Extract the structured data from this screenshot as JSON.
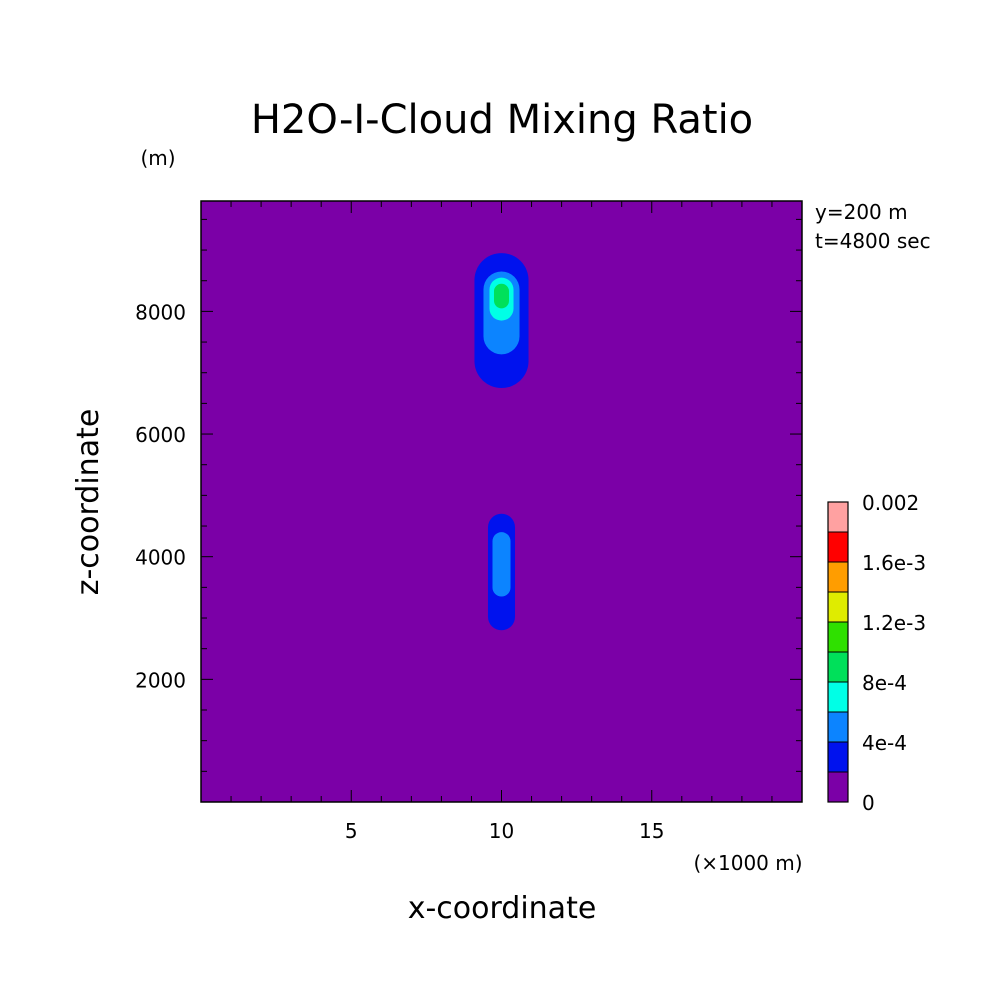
{
  "chart_data": {
    "type": "heatmap",
    "title": "H2O-I-Cloud Mixing Ratio",
    "xlabel": "x-coordinate",
    "ylabel": "z-coordinate",
    "x_unit": "(×1000 m)",
    "y_unit": "(m)",
    "info_lines": [
      "y=200 m",
      "t=4800 sec"
    ],
    "xlim": [
      0,
      20
    ],
    "ylim": [
      0,
      9800
    ],
    "x_ticks": [
      5,
      10,
      15
    ],
    "y_ticks": [
      2000,
      4000,
      6000,
      8000
    ],
    "x_tick_labels": [
      "5",
      "10",
      "15"
    ],
    "y_tick_labels": [
      "2000",
      "4000",
      "6000",
      "8000"
    ],
    "colorbar": {
      "levels": [
        0,
        0.0002,
        0.0004,
        0.0006,
        0.0008,
        0.001,
        0.0012,
        0.0014,
        0.0016,
        0.0018,
        0.002
      ],
      "colors": [
        "#7b00a7",
        "#0012ee",
        "#0c84ff",
        "#00ffe6",
        "#00e05a",
        "#2fe000",
        "#dfec00",
        "#ff9d00",
        "#ff0000",
        "#ffa1a1"
      ],
      "labels": [
        "0",
        "4e-4",
        "8e-4",
        "1.2e-3",
        "1.6e-3",
        "0.002"
      ]
    },
    "background_color": "#7b00a7",
    "features": [
      {
        "name": "upper-cloud",
        "x": 10,
        "z": 8000,
        "bands": [
          {
            "level": 1,
            "x0": 9.1,
            "x1": 10.9,
            "z0": 6750,
            "z1": 8950
          },
          {
            "level": 2,
            "x0": 9.4,
            "x1": 10.6,
            "z0": 7300,
            "z1": 8650
          },
          {
            "level": 3,
            "x0": 9.6,
            "x1": 10.4,
            "z0": 7850,
            "z1": 8550
          },
          {
            "level": 4,
            "x0": 9.75,
            "x1": 10.25,
            "z0": 8050,
            "z1": 8450
          }
        ]
      },
      {
        "name": "lower-cloud",
        "x": 10,
        "z": 3900,
        "bands": [
          {
            "level": 1,
            "x0": 9.55,
            "x1": 10.45,
            "z0": 2800,
            "z1": 4700
          },
          {
            "level": 2,
            "x0": 9.7,
            "x1": 10.3,
            "z0": 3350,
            "z1": 4400
          }
        ]
      }
    ]
  }
}
